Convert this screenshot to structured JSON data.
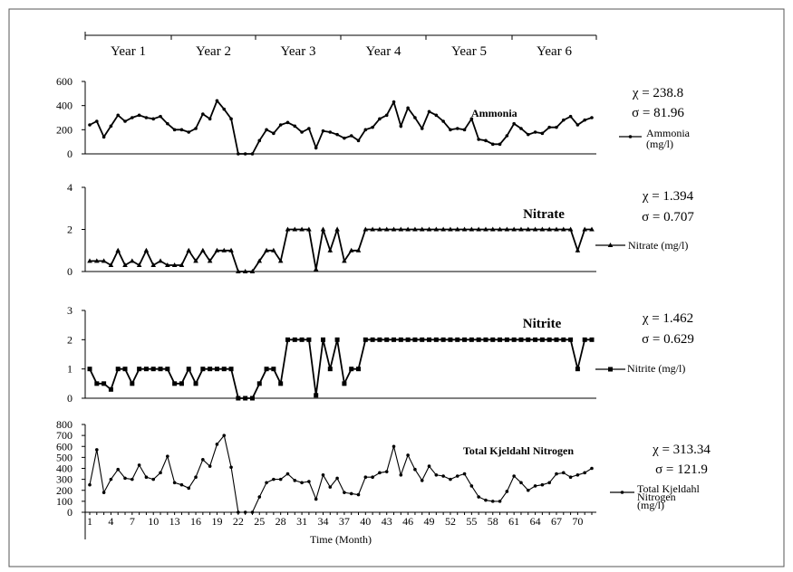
{
  "years": [
    "Year 1",
    "Year 2",
    "Year 3",
    "Year 4",
    "Year 5",
    "Year 6"
  ],
  "chart_data": [
    {
      "type": "line",
      "title": "Ammonia",
      "legend": "Ammonia (mg/l)",
      "stats": {
        "chi": "χ = 238.8",
        "sigma": "σ = 81.96"
      },
      "ylim": [
        0,
        600
      ],
      "yticks": [
        "0",
        "200",
        "400",
        "600"
      ],
      "x": [
        1,
        2,
        3,
        4,
        5,
        6,
        7,
        8,
        9,
        10,
        11,
        12,
        13,
        14,
        15,
        16,
        17,
        18,
        19,
        20,
        21,
        22,
        23,
        24,
        25,
        26,
        27,
        28,
        29,
        30,
        31,
        32,
        33,
        34,
        35,
        36,
        37,
        38,
        39,
        40,
        41,
        42,
        43,
        44,
        45,
        46,
        47,
        48,
        49,
        50,
        51,
        52,
        53,
        54,
        55,
        56,
        57,
        58,
        59,
        60,
        61,
        62,
        63,
        64,
        65,
        66,
        67,
        68,
        69,
        70,
        71,
        72
      ],
      "values": [
        240,
        270,
        140,
        230,
        320,
        270,
        300,
        320,
        300,
        290,
        310,
        250,
        200,
        200,
        180,
        210,
        330,
        290,
        440,
        370,
        290,
        0,
        0,
        0,
        110,
        200,
        170,
        240,
        260,
        230,
        180,
        210,
        50,
        190,
        180,
        160,
        130,
        150,
        110,
        200,
        220,
        290,
        320,
        430,
        230,
        380,
        300,
        210,
        350,
        320,
        270,
        200,
        210,
        200,
        290,
        120,
        110,
        80,
        80,
        150,
        250,
        210,
        160,
        180,
        170,
        220,
        220,
        280,
        310,
        240,
        280,
        300
      ]
    },
    {
      "type": "line",
      "title": "Nitrate",
      "legend": "Nitrate (mg/l)",
      "stats": {
        "chi": "χ = 1.394",
        "sigma": "σ = 0.707"
      },
      "ylim": [
        0,
        4
      ],
      "yticks": [
        "0",
        "2",
        "4"
      ],
      "x": [
        1,
        2,
        3,
        4,
        5,
        6,
        7,
        8,
        9,
        10,
        11,
        12,
        13,
        14,
        15,
        16,
        17,
        18,
        19,
        20,
        21,
        22,
        23,
        24,
        25,
        26,
        27,
        28,
        29,
        30,
        31,
        32,
        33,
        34,
        35,
        36,
        37,
        38,
        39,
        40,
        41,
        42,
        43,
        44,
        45,
        46,
        47,
        48,
        49,
        50,
        51,
        52,
        53,
        54,
        55,
        56,
        57,
        58,
        59,
        60,
        61,
        62,
        63,
        64,
        65,
        66,
        67,
        68,
        69,
        70,
        71,
        72
      ],
      "values": [
        0.5,
        0.5,
        0.5,
        0.3,
        1,
        0.3,
        0.5,
        0.3,
        1,
        0.3,
        0.5,
        0.3,
        0.3,
        0.3,
        1,
        0.5,
        1,
        0.5,
        1,
        1,
        1,
        0,
        0,
        0,
        0.5,
        1,
        1,
        0.5,
        2,
        2,
        2,
        2,
        0.1,
        2,
        1,
        2,
        0.5,
        1,
        1,
        2,
        2,
        2,
        2,
        2,
        2,
        2,
        2,
        2,
        2,
        2,
        2,
        2,
        2,
        2,
        2,
        2,
        2,
        2,
        2,
        2,
        2,
        2,
        2,
        2,
        2,
        2,
        2,
        2,
        2,
        1,
        2,
        2
      ]
    },
    {
      "type": "line",
      "title": "Nitrite",
      "legend": "Nitrite (mg/l)",
      "stats": {
        "chi": "χ = 1.462",
        "sigma": "σ = 0.629"
      },
      "ylim": [
        0,
        3
      ],
      "yticks": [
        "0",
        "1",
        "2",
        "3"
      ],
      "x": [
        1,
        2,
        3,
        4,
        5,
        6,
        7,
        8,
        9,
        10,
        11,
        12,
        13,
        14,
        15,
        16,
        17,
        18,
        19,
        20,
        21,
        22,
        23,
        24,
        25,
        26,
        27,
        28,
        29,
        30,
        31,
        32,
        33,
        34,
        35,
        36,
        37,
        38,
        39,
        40,
        41,
        42,
        43,
        44,
        45,
        46,
        47,
        48,
        49,
        50,
        51,
        52,
        53,
        54,
        55,
        56,
        57,
        58,
        59,
        60,
        61,
        62,
        63,
        64,
        65,
        66,
        67,
        68,
        69,
        70,
        71,
        72
      ],
      "values": [
        1,
        0.5,
        0.5,
        0.3,
        1,
        1,
        0.5,
        1,
        1,
        1,
        1,
        1,
        0.5,
        0.5,
        1,
        0.5,
        1,
        1,
        1,
        1,
        1,
        0,
        0,
        0,
        0.5,
        1,
        1,
        0.5,
        2,
        2,
        2,
        2,
        0.1,
        2,
        1,
        2,
        0.5,
        1,
        1,
        2,
        2,
        2,
        2,
        2,
        2,
        2,
        2,
        2,
        2,
        2,
        2,
        2,
        2,
        2,
        2,
        2,
        2,
        2,
        2,
        2,
        2,
        2,
        2,
        2,
        2,
        2,
        2,
        2,
        2,
        1,
        2,
        2
      ]
    },
    {
      "type": "line",
      "title": "Total Kjeldahl Nitrogen",
      "legend": "Total Kjeldahl Nitrogen (mg/l)",
      "stats": {
        "chi": "χ = 313.34",
        "sigma": "σ = 121.9"
      },
      "ylim": [
        0,
        800
      ],
      "yticks": [
        "0",
        "100",
        "200",
        "300",
        "400",
        "500",
        "600",
        "700",
        "800"
      ],
      "xlabel": "Time (Month)",
      "xticks": [
        1,
        4,
        7,
        10,
        13,
        16,
        19,
        22,
        25,
        28,
        31,
        34,
        37,
        40,
        43,
        46,
        49,
        52,
        55,
        58,
        61,
        64,
        67,
        70
      ],
      "x": [
        1,
        2,
        3,
        4,
        5,
        6,
        7,
        8,
        9,
        10,
        11,
        12,
        13,
        14,
        15,
        16,
        17,
        18,
        19,
        20,
        21,
        22,
        23,
        24,
        25,
        26,
        27,
        28,
        29,
        30,
        31,
        32,
        33,
        34,
        35,
        36,
        37,
        38,
        39,
        40,
        41,
        42,
        43,
        44,
        45,
        46,
        47,
        48,
        49,
        50,
        51,
        52,
        53,
        54,
        55,
        56,
        57,
        58,
        59,
        60,
        61,
        62,
        63,
        64,
        65,
        66,
        67,
        68,
        69,
        70,
        71,
        72
      ],
      "values": [
        250,
        570,
        180,
        300,
        390,
        310,
        300,
        430,
        320,
        300,
        360,
        510,
        270,
        250,
        220,
        320,
        480,
        420,
        620,
        700,
        410,
        0,
        0,
        0,
        140,
        270,
        300,
        300,
        350,
        290,
        270,
        280,
        120,
        340,
        230,
        310,
        180,
        170,
        160,
        320,
        320,
        360,
        370,
        600,
        340,
        520,
        390,
        290,
        420,
        340,
        330,
        300,
        330,
        350,
        240,
        140,
        110,
        100,
        100,
        190,
        330,
        270,
        200,
        240,
        250,
        270,
        350,
        360,
        320,
        340,
        360,
        400
      ]
    }
  ]
}
